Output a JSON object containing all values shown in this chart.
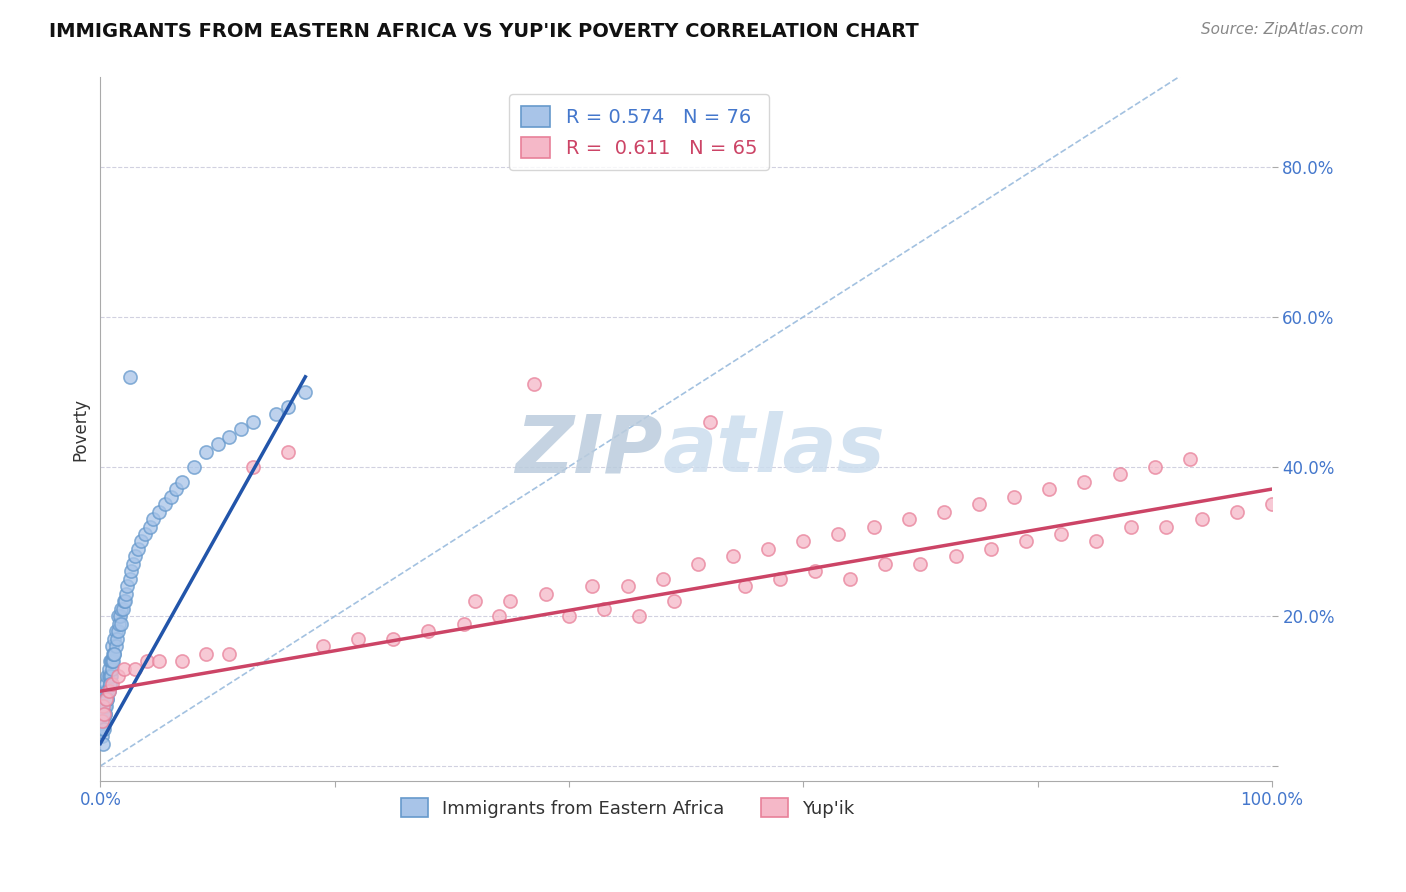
{
  "title": "IMMIGRANTS FROM EASTERN AFRICA VS YUP'IK POVERTY CORRELATION CHART",
  "source": "Source: ZipAtlas.com",
  "ylabel": "Poverty",
  "legend_series1_label": "Immigrants from Eastern Africa",
  "legend_series1_r": "0.574",
  "legend_series1_n": "76",
  "legend_series2_label": "Yup'ik",
  "legend_series2_r": "0.611",
  "legend_series2_n": "65",
  "blue_face": "#A8C4E8",
  "blue_edge": "#6699CC",
  "pink_face": "#F5B8C8",
  "pink_edge": "#E88099",
  "blue_line_color": "#2255AA",
  "pink_line_color": "#CC4466",
  "ref_line_color": "#99BBDD",
  "grid_color": "#CCCCDD",
  "blue_scatter_x": [
    0.001,
    0.001,
    0.002,
    0.002,
    0.002,
    0.003,
    0.003,
    0.003,
    0.004,
    0.004,
    0.004,
    0.005,
    0.005,
    0.005,
    0.006,
    0.006,
    0.006,
    0.007,
    0.007,
    0.007,
    0.008,
    0.008,
    0.008,
    0.009,
    0.009,
    0.01,
    0.01,
    0.01,
    0.011,
    0.011,
    0.012,
    0.012,
    0.013,
    0.013,
    0.014,
    0.015,
    0.015,
    0.016,
    0.017,
    0.018,
    0.019,
    0.02,
    0.021,
    0.022,
    0.023,
    0.025,
    0.026,
    0.028,
    0.03,
    0.032,
    0.035,
    0.038,
    0.042,
    0.045,
    0.05,
    0.055,
    0.06,
    0.065,
    0.07,
    0.08,
    0.09,
    0.1,
    0.11,
    0.12,
    0.13,
    0.15,
    0.16,
    0.175,
    0.002,
    0.003,
    0.004,
    0.006,
    0.008,
    0.012,
    0.018,
    0.025
  ],
  "blue_scatter_y": [
    0.04,
    0.06,
    0.05,
    0.07,
    0.08,
    0.06,
    0.08,
    0.09,
    0.07,
    0.08,
    0.1,
    0.08,
    0.09,
    0.11,
    0.09,
    0.1,
    0.12,
    0.1,
    0.12,
    0.13,
    0.11,
    0.12,
    0.14,
    0.12,
    0.14,
    0.13,
    0.14,
    0.16,
    0.14,
    0.15,
    0.15,
    0.17,
    0.16,
    0.18,
    0.17,
    0.18,
    0.2,
    0.19,
    0.2,
    0.21,
    0.21,
    0.22,
    0.22,
    0.23,
    0.24,
    0.25,
    0.26,
    0.27,
    0.28,
    0.29,
    0.3,
    0.31,
    0.32,
    0.33,
    0.34,
    0.35,
    0.36,
    0.37,
    0.38,
    0.4,
    0.42,
    0.43,
    0.44,
    0.45,
    0.46,
    0.47,
    0.48,
    0.5,
    0.03,
    0.05,
    0.07,
    0.09,
    0.11,
    0.15,
    0.19,
    0.52
  ],
  "pink_scatter_x": [
    0.001,
    0.002,
    0.003,
    0.005,
    0.007,
    0.01,
    0.015,
    0.02,
    0.03,
    0.04,
    0.05,
    0.07,
    0.09,
    0.11,
    0.13,
    0.16,
    0.19,
    0.22,
    0.25,
    0.28,
    0.31,
    0.34,
    0.37,
    0.4,
    0.43,
    0.46,
    0.49,
    0.52,
    0.55,
    0.58,
    0.61,
    0.64,
    0.67,
    0.7,
    0.73,
    0.76,
    0.79,
    0.82,
    0.85,
    0.88,
    0.91,
    0.94,
    0.97,
    1.0,
    0.32,
    0.35,
    0.38,
    0.42,
    0.45,
    0.48,
    0.51,
    0.54,
    0.57,
    0.6,
    0.63,
    0.66,
    0.69,
    0.72,
    0.75,
    0.78,
    0.81,
    0.84,
    0.87,
    0.9,
    0.93
  ],
  "pink_scatter_y": [
    0.06,
    0.08,
    0.07,
    0.09,
    0.1,
    0.11,
    0.12,
    0.13,
    0.13,
    0.14,
    0.14,
    0.14,
    0.15,
    0.15,
    0.4,
    0.42,
    0.16,
    0.17,
    0.17,
    0.18,
    0.19,
    0.2,
    0.51,
    0.2,
    0.21,
    0.2,
    0.22,
    0.46,
    0.24,
    0.25,
    0.26,
    0.25,
    0.27,
    0.27,
    0.28,
    0.29,
    0.3,
    0.31,
    0.3,
    0.32,
    0.32,
    0.33,
    0.34,
    0.35,
    0.22,
    0.22,
    0.23,
    0.24,
    0.24,
    0.25,
    0.27,
    0.28,
    0.29,
    0.3,
    0.31,
    0.32,
    0.33,
    0.34,
    0.35,
    0.36,
    0.37,
    0.38,
    0.39,
    0.4,
    0.41
  ],
  "blue_line_x": [
    0.0,
    0.175
  ],
  "blue_line_y": [
    0.03,
    0.52
  ],
  "pink_line_x": [
    0.0,
    1.0
  ],
  "pink_line_y": [
    0.1,
    0.37
  ],
  "ref_line_x": [
    0.0,
    1.0
  ],
  "ref_line_y": [
    0.0,
    1.0
  ],
  "xlim": [
    0.0,
    1.0
  ],
  "ylim": [
    -0.02,
    0.92
  ],
  "ytick_positions": [
    0.0,
    0.2,
    0.4,
    0.6,
    0.8
  ],
  "ytick_labels": [
    "",
    "20.0%",
    "40.0%",
    "60.0%",
    "80.0%"
  ],
  "xtick_positions": [
    0.0,
    0.2,
    0.4,
    0.6,
    0.8,
    1.0
  ],
  "xtick_labels": [
    "0.0%",
    "",
    "",
    "",
    "",
    "100.0%"
  ],
  "tick_color": "#4477CC",
  "title_fontsize": 14,
  "label_fontsize": 12,
  "watermark_color": "#C8D8EC"
}
